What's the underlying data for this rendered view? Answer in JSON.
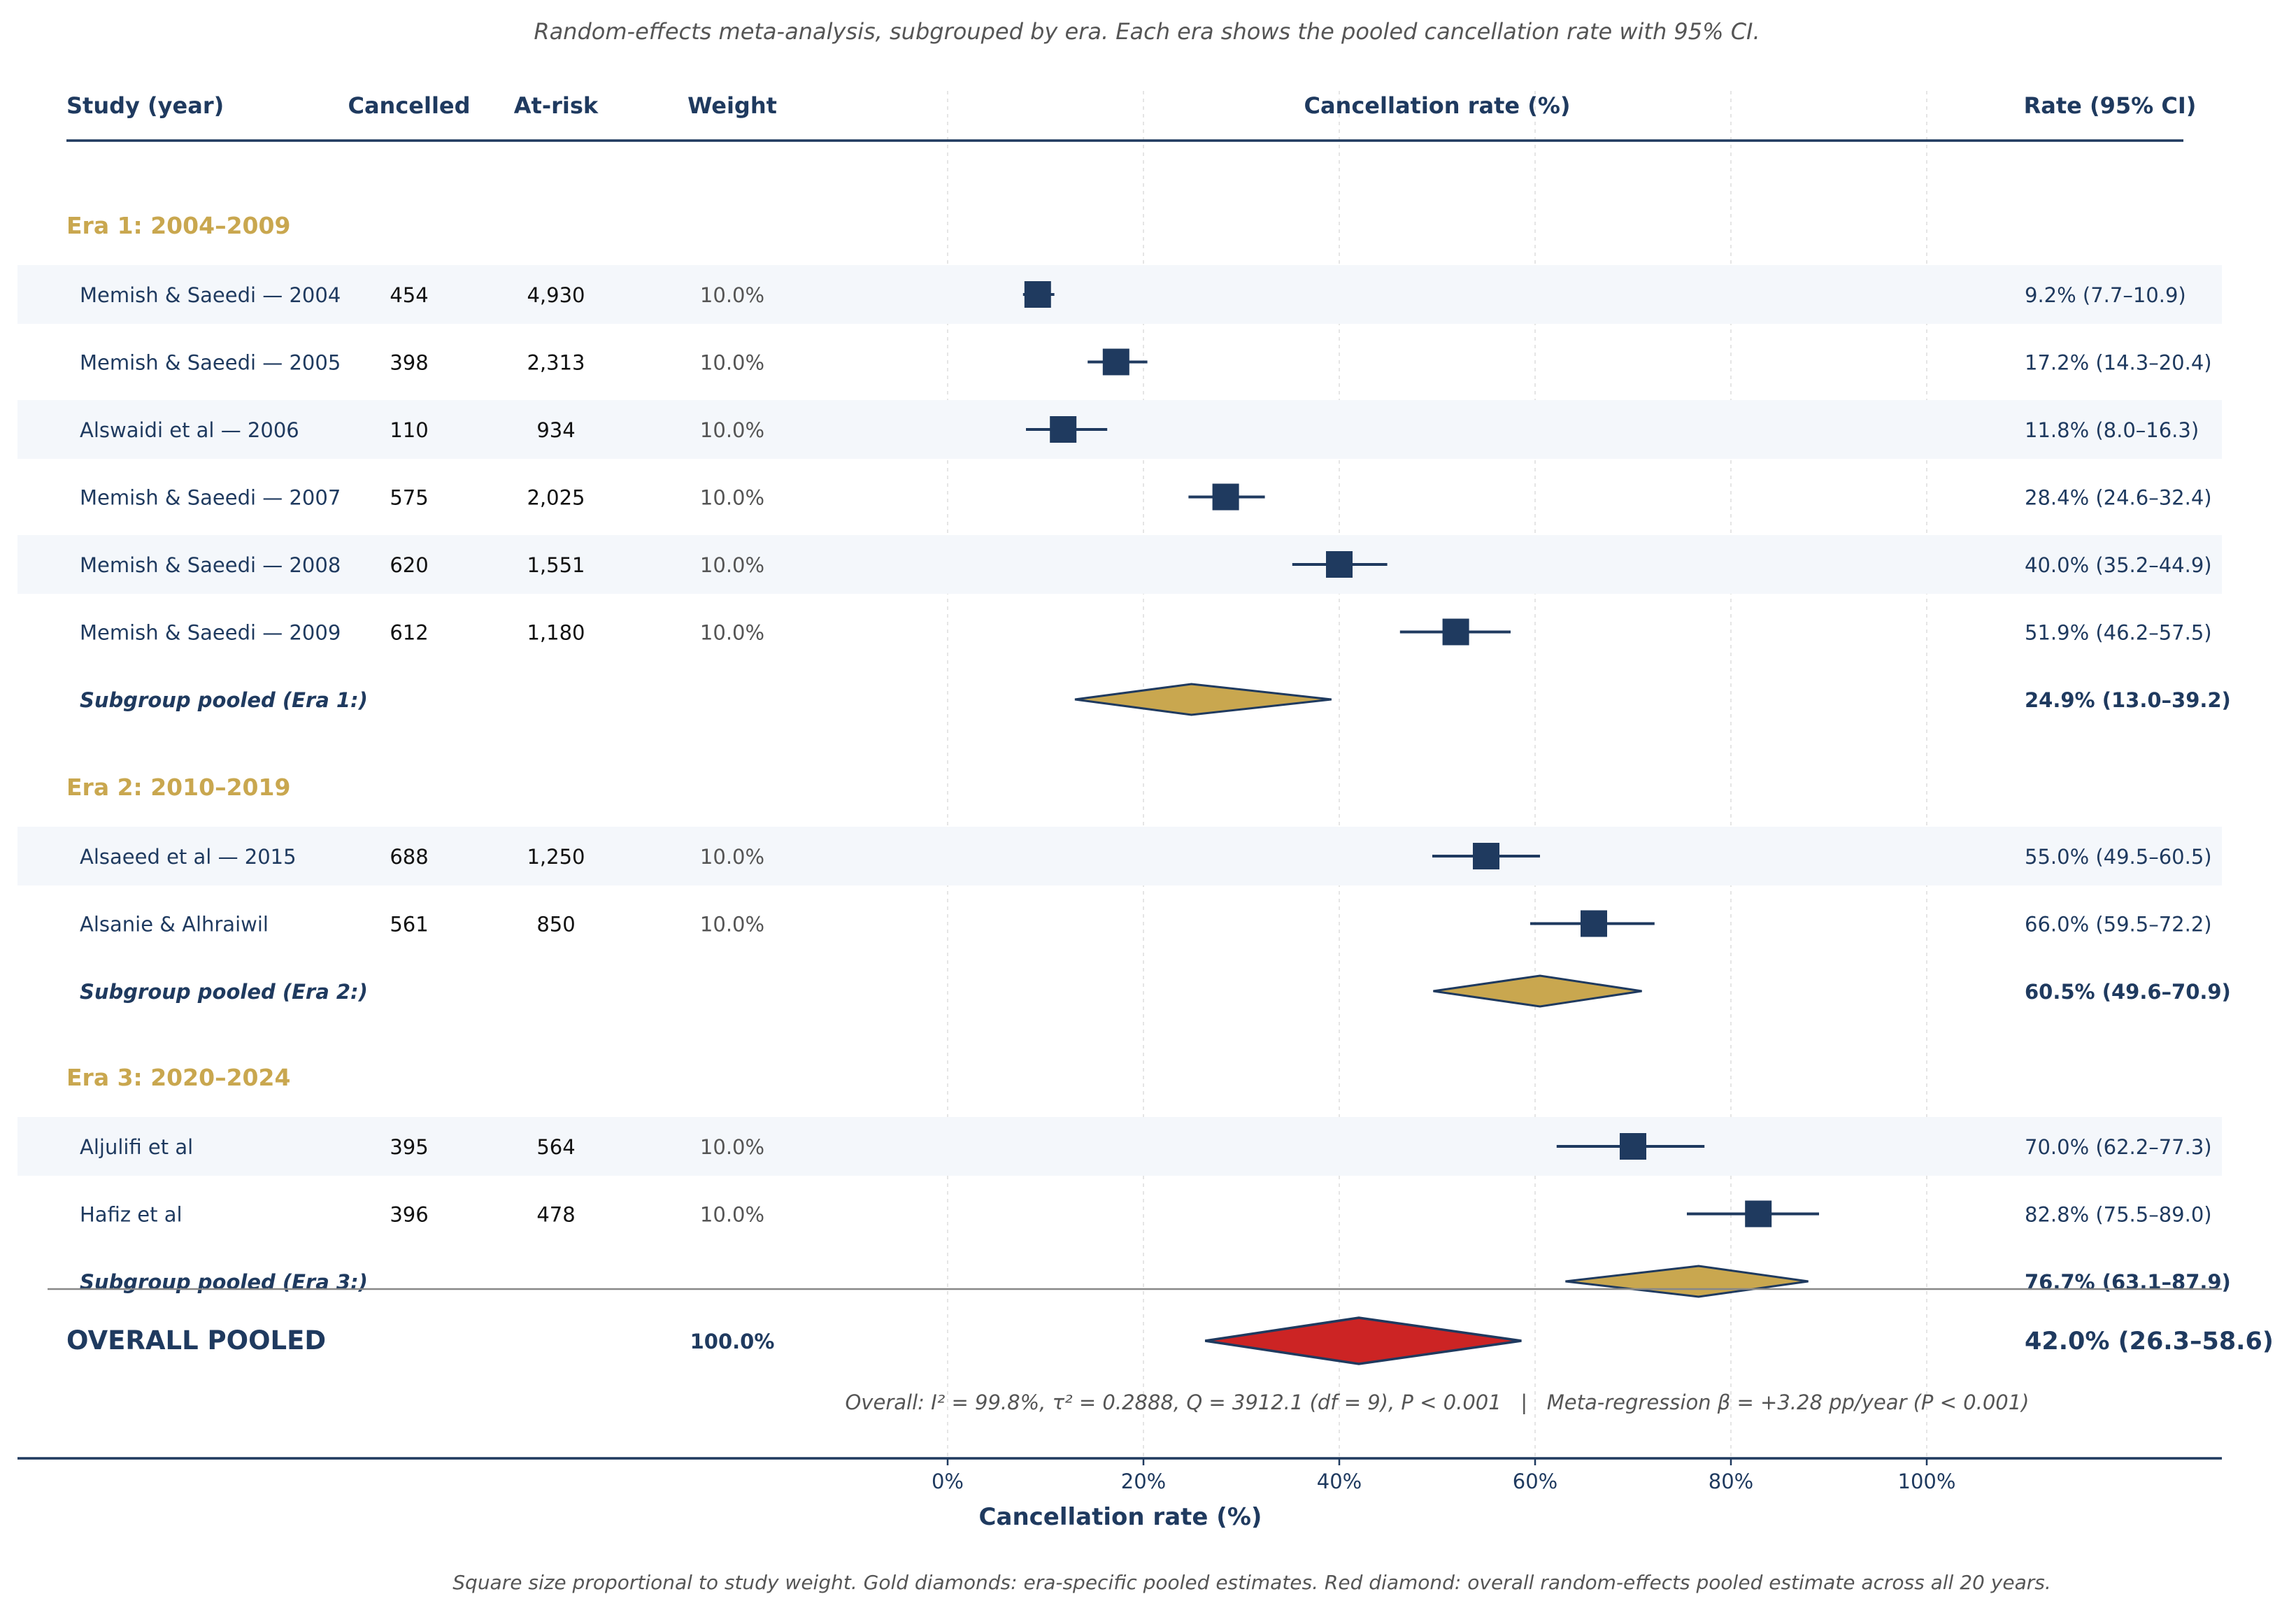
{
  "header": {
    "subtitle": "Random-effects meta-analysis, subgrouped by era. Each era shows the pooled cancellation rate with 95% CI.",
    "columns": {
      "study": "Study (year)",
      "cancelled": "Cancelled",
      "at_risk": "At-risk",
      "weight": "Weight",
      "plot": "Cancellation rate (%)",
      "rate_ci": "Rate (95% CI)"
    }
  },
  "colors": {
    "navy": "#1f3a5f",
    "gold": "#c9a74f",
    "red": "#cc2424",
    "row_band": "#f4f7fb",
    "grey_text": "#555555",
    "grid": "#e5e5e5"
  },
  "chart_data": {
    "type": "forest",
    "xlim": [
      0,
      100
    ],
    "ticks": [
      0,
      20,
      40,
      60,
      80,
      100
    ],
    "tick_labels": [
      "0%",
      "20%",
      "40%",
      "60%",
      "80%",
      "100%"
    ],
    "xlabel": "Cancellation rate (%)",
    "grid": true,
    "groups": [
      {
        "label": "Era 1: 2004–2009",
        "studies": [
          {
            "study": "Memish & Saeedi — 2004",
            "cancelled": "454",
            "at_risk": "4,930",
            "weight": "10.0%",
            "rate": 9.2,
            "lo": 7.7,
            "hi": 10.9,
            "ci_text": "9.2% (7.7–10.9)"
          },
          {
            "study": "Memish & Saeedi — 2005",
            "cancelled": "398",
            "at_risk": "2,313",
            "weight": "10.0%",
            "rate": 17.2,
            "lo": 14.3,
            "hi": 20.4,
            "ci_text": "17.2% (14.3–20.4)"
          },
          {
            "study": "Alswaidi et al — 2006",
            "cancelled": "110",
            "at_risk": "934",
            "weight": "10.0%",
            "rate": 11.8,
            "lo": 8.0,
            "hi": 16.3,
            "ci_text": "11.8% (8.0–16.3)"
          },
          {
            "study": "Memish & Saeedi — 2007",
            "cancelled": "575",
            "at_risk": "2,025",
            "weight": "10.0%",
            "rate": 28.4,
            "lo": 24.6,
            "hi": 32.4,
            "ci_text": "28.4% (24.6–32.4)"
          },
          {
            "study": "Memish & Saeedi — 2008",
            "cancelled": "620",
            "at_risk": "1,551",
            "weight": "10.0%",
            "rate": 40.0,
            "lo": 35.2,
            "hi": 44.9,
            "ci_text": "40.0% (35.2–44.9)"
          },
          {
            "study": "Memish & Saeedi — 2009",
            "cancelled": "612",
            "at_risk": "1,180",
            "weight": "10.0%",
            "rate": 51.9,
            "lo": 46.2,
            "hi": 57.5,
            "ci_text": "51.9% (46.2–57.5)"
          }
        ],
        "pooled": {
          "label": "Subgroup pooled (Era 1:)",
          "rate": 24.9,
          "lo": 13.0,
          "hi": 39.2,
          "ci_text": "24.9% (13.0–39.2)"
        }
      },
      {
        "label": "Era 2: 2010–2019",
        "studies": [
          {
            "study": "Alsaeed et al — 2015",
            "cancelled": "688",
            "at_risk": "1,250",
            "weight": "10.0%",
            "rate": 55.0,
            "lo": 49.5,
            "hi": 60.5,
            "ci_text": "55.0% (49.5–60.5)"
          },
          {
            "study": "Alsanie & Alhraiwil",
            "cancelled": "561",
            "at_risk": "850",
            "weight": "10.0%",
            "rate": 66.0,
            "lo": 59.5,
            "hi": 72.2,
            "ci_text": "66.0% (59.5–72.2)"
          }
        ],
        "pooled": {
          "label": "Subgroup pooled (Era 2:)",
          "rate": 60.5,
          "lo": 49.6,
          "hi": 70.9,
          "ci_text": "60.5% (49.6–70.9)"
        }
      },
      {
        "label": "Era 3: 2020–2024",
        "studies": [
          {
            "study": "Aljulifi et al",
            "cancelled": "395",
            "at_risk": "564",
            "weight": "10.0%",
            "rate": 70.0,
            "lo": 62.2,
            "hi": 77.3,
            "ci_text": "70.0% (62.2–77.3)"
          },
          {
            "study": "Hafiz et al",
            "cancelled": "396",
            "at_risk": "478",
            "weight": "10.0%",
            "rate": 82.8,
            "lo": 75.5,
            "hi": 89.0,
            "ci_text": "82.8% (75.5–89.0)"
          }
        ],
        "pooled": {
          "label": "Subgroup pooled (Era 3:)",
          "rate": 76.7,
          "lo": 63.1,
          "hi": 87.9,
          "ci_text": "76.7% (63.1–87.9)"
        }
      }
    ],
    "overall": {
      "label": "OVERALL POOLED",
      "weight": "100.0%",
      "rate": 42.0,
      "lo": 26.3,
      "hi": 58.6,
      "ci_text": "42.0% (26.3–58.6)"
    },
    "stats_text": "Overall: I² = 99.8%, τ² = 0.2888, Q = 3912.1 (df = 9), P < 0.001   |   Meta-regression β = +3.28 pp/year (P < 0.001)"
  },
  "footnote": "Square size proportional to study weight. Gold diamonds: era-specific pooled estimates. Red diamond: overall random-effects pooled estimate across all 20 years."
}
